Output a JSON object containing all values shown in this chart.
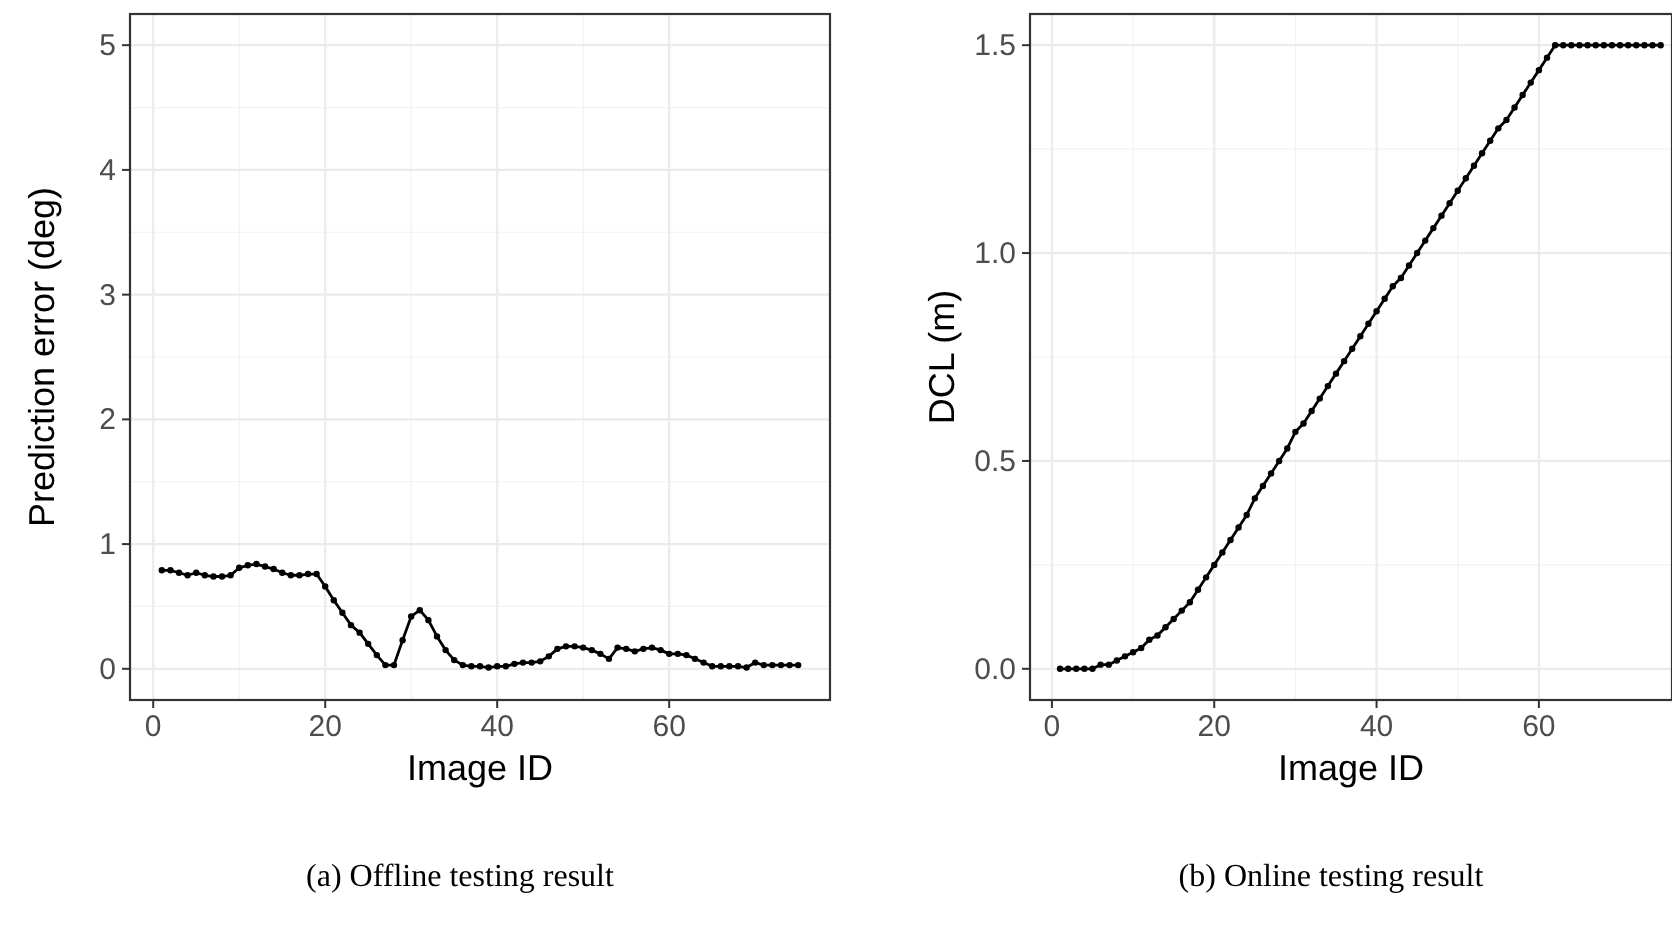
{
  "chart_data": [
    {
      "type": "line",
      "xlabel": "Image ID",
      "ylabel": "Prediction error (deg)",
      "annotations": [
        "(a) Offline testing result"
      ],
      "marker": "circle",
      "grid": true,
      "xlim": [
        -2.7,
        78.7
      ],
      "ylim": [
        -0.25,
        5.25
      ],
      "xticks": [
        0,
        20,
        40,
        60
      ],
      "yticks": [
        0,
        1,
        2,
        3,
        4,
        5
      ],
      "x": [
        1,
        2,
        3,
        4,
        5,
        6,
        7,
        8,
        9,
        10,
        11,
        12,
        13,
        14,
        15,
        16,
        17,
        18,
        19,
        20,
        21,
        22,
        23,
        24,
        25,
        26,
        27,
        28,
        29,
        30,
        31,
        32,
        33,
        34,
        35,
        36,
        37,
        38,
        39,
        40,
        41,
        42,
        43,
        44,
        45,
        46,
        47,
        48,
        49,
        50,
        51,
        52,
        53,
        54,
        55,
        56,
        57,
        58,
        59,
        60,
        61,
        62,
        63,
        64,
        65,
        66,
        67,
        68,
        69,
        70,
        71,
        72,
        73,
        74,
        75
      ],
      "series": [
        {
          "color": "#000000",
          "values": [
            0.79,
            0.79,
            0.77,
            0.75,
            0.77,
            0.75,
            0.74,
            0.74,
            0.75,
            0.81,
            0.83,
            0.84,
            0.82,
            0.8,
            0.77,
            0.75,
            0.75,
            0.76,
            0.76,
            0.66,
            0.55,
            0.45,
            0.35,
            0.29,
            0.2,
            0.11,
            0.03,
            0.03,
            0.23,
            0.42,
            0.47,
            0.39,
            0.26,
            0.15,
            0.07,
            0.03,
            0.02,
            0.02,
            0.01,
            0.02,
            0.02,
            0.04,
            0.05,
            0.05,
            0.06,
            0.1,
            0.16,
            0.18,
            0.18,
            0.17,
            0.15,
            0.12,
            0.08,
            0.17,
            0.16,
            0.14,
            0.16,
            0.17,
            0.15,
            0.12,
            0.12,
            0.11,
            0.08,
            0.05,
            0.02,
            0.02,
            0.02,
            0.02,
            0.01,
            0.05,
            0.03,
            0.03,
            0.03,
            0.03,
            0.03
          ]
        }
      ]
    },
    {
      "type": "line",
      "xlabel": "Image ID",
      "ylabel": "DCL (m)",
      "annotations": [
        "(b) Online testing result"
      ],
      "marker": "circle",
      "grid": true,
      "xlim": [
        -2.7,
        76.4
      ],
      "ylim": [
        -0.075,
        1.575
      ],
      "xticks": [
        0,
        20,
        40,
        60
      ],
      "yticks": [
        {
          "value": 0,
          "label": "0.0"
        },
        {
          "value": 0.5,
          "label": "0.5"
        },
        {
          "value": 1,
          "label": "1.0"
        },
        {
          "value": 1.5,
          "label": "1.5"
        }
      ],
      "x": [
        1,
        2,
        3,
        4,
        5,
        6,
        7,
        8,
        9,
        10,
        11,
        12,
        13,
        14,
        15,
        16,
        17,
        18,
        19,
        20,
        21,
        22,
        23,
        24,
        25,
        26,
        27,
        28,
        29,
        30,
        31,
        32,
        33,
        34,
        35,
        36,
        37,
        38,
        39,
        40,
        41,
        42,
        43,
        44,
        45,
        46,
        47,
        48,
        49,
        50,
        51,
        52,
        53,
        54,
        55,
        56,
        57,
        58,
        59,
        60,
        61,
        62,
        63,
        64,
        65,
        66,
        67,
        68,
        69,
        70,
        71,
        72,
        73,
        74,
        75
      ],
      "series": [
        {
          "color": "#000000",
          "values": [
            0,
            0,
            0,
            0,
            0,
            0.01,
            0.01,
            0.02,
            0.03,
            0.04,
            0.05,
            0.07,
            0.08,
            0.1,
            0.12,
            0.14,
            0.16,
            0.19,
            0.22,
            0.25,
            0.28,
            0.31,
            0.34,
            0.37,
            0.41,
            0.44,
            0.47,
            0.5,
            0.53,
            0.57,
            0.59,
            0.62,
            0.65,
            0.68,
            0.71,
            0.74,
            0.77,
            0.8,
            0.83,
            0.86,
            0.89,
            0.92,
            0.94,
            0.97,
            1,
            1.03,
            1.06,
            1.09,
            1.12,
            1.15,
            1.18,
            1.21,
            1.24,
            1.27,
            1.3,
            1.32,
            1.35,
            1.38,
            1.41,
            1.44,
            1.47,
            1.5,
            1.5,
            1.5,
            1.5,
            1.5,
            1.5,
            1.5,
            1.5,
            1.5,
            1.5,
            1.5,
            1.5,
            1.5,
            1.5
          ]
        }
      ]
    }
  ]
}
